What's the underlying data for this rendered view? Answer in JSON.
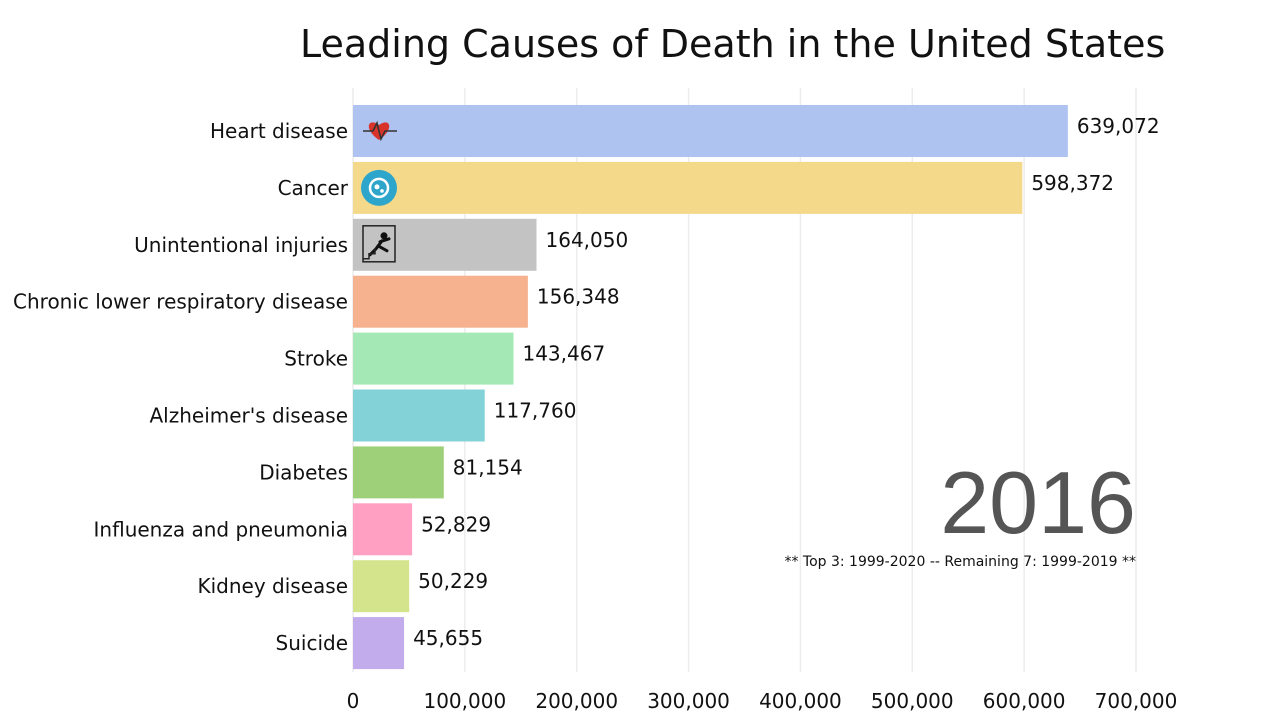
{
  "chart_data": {
    "type": "bar",
    "orientation": "horizontal",
    "title": "Leading Causes of Death in the United States",
    "categories": [
      "Heart disease",
      "Cancer",
      "Unintentional injuries",
      "Chronic lower respiratory disease",
      "Stroke",
      "Alzheimer's disease",
      "Diabetes",
      "Influenza and pneumonia",
      "Kidney disease",
      "Suicide"
    ],
    "values": [
      639072,
      598372,
      164050,
      156348,
      143467,
      117760,
      81154,
      52829,
      50229,
      45655
    ],
    "value_labels": [
      "639,072",
      "598,372",
      "164,050",
      "156,348",
      "143,467",
      "117,760",
      "81,154",
      "52,829",
      "50,229",
      "45,655"
    ],
    "colors": [
      "#aec3f0",
      "#f5d98a",
      "#c3c3c3",
      "#f6b28f",
      "#a3e8b5",
      "#83d2d8",
      "#9ed07a",
      "#ff9fc2",
      "#d4e48d",
      "#c3aceb"
    ],
    "icons": [
      "heart-pulse-icon",
      "cancer-cell-icon",
      "falling-person-icon",
      null,
      null,
      null,
      null,
      null,
      null,
      null
    ],
    "xlim": [
      0,
      700000
    ],
    "xticks": [
      0,
      100000,
      200000,
      300000,
      400000,
      500000,
      600000,
      700000
    ],
    "xtick_labels": [
      "0",
      "100,000",
      "200,000",
      "300,000",
      "400,000",
      "500,000",
      "600,000",
      "700,000"
    ],
    "grid": true,
    "year": "2016",
    "note": "** Top 3: 1999-2020 -- Remaining 7: 1999-2019 **"
  }
}
